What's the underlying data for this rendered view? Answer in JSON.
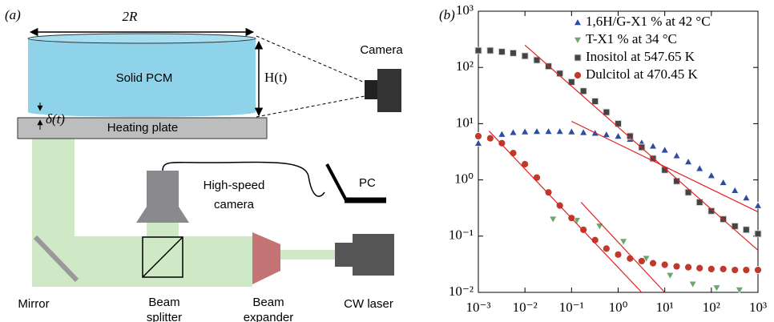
{
  "diagram": {
    "panel_label": "(a)",
    "labels": {
      "width": "2R",
      "solid": "Solid PCM",
      "height": "H(t)",
      "camera": "Camera",
      "gap": "δ(t)",
      "plate": "Heating plate",
      "hs_camera": [
        "High-speed",
        "camera"
      ],
      "pc": "PC",
      "mirror": "Mirror",
      "splitter": [
        "Beam",
        "splitter"
      ],
      "expander": [
        "Beam",
        "expander"
      ],
      "laser": "CW laser"
    }
  },
  "chart_data": {
    "type": "scatter",
    "panel_label": "(b)",
    "xscale": "log",
    "yscale": "log",
    "xlim": [
      0.001,
      1000
    ],
    "ylim": [
      0.01,
      1000
    ],
    "xticks": [
      {
        "value": 0.001,
        "label": "10⁻³"
      },
      {
        "value": 0.01,
        "label": "10⁻²"
      },
      {
        "value": 0.1,
        "label": "10⁻¹"
      },
      {
        "value": 1,
        "label": "10⁰"
      },
      {
        "value": 10,
        "label": "10¹"
      },
      {
        "value": 100,
        "label": "10²"
      },
      {
        "value": 1000,
        "label": "10³"
      }
    ],
    "yticks": [
      {
        "value": 0.01,
        "label": "10⁻²"
      },
      {
        "value": 0.1,
        "label": "10⁻¹"
      },
      {
        "value": 1,
        "label": "10⁰"
      },
      {
        "value": 10,
        "label": "10¹"
      },
      {
        "value": 100,
        "label": "10²"
      },
      {
        "value": 1000,
        "label": "10³"
      }
    ],
    "legend": "upper right",
    "series": [
      {
        "name": "1,6H/G-X1 % at 42 °C",
        "color": "#2b4f9e",
        "marker": "triangle-up",
        "x": [
          0.001,
          0.0018,
          0.0032,
          0.0056,
          0.01,
          0.018,
          0.032,
          0.056,
          0.1,
          0.18,
          0.32,
          0.56,
          1,
          1.8,
          3.2,
          5.6,
          10,
          18,
          32,
          56,
          100,
          180,
          320,
          560,
          1000
        ],
        "values": [
          4.5,
          5.5,
          6.5,
          7,
          7.2,
          7.3,
          7.3,
          7.3,
          7.2,
          7,
          6.8,
          6.4,
          6,
          5.3,
          4.6,
          4,
          3.4,
          2.7,
          2.1,
          1.6,
          1.2,
          0.9,
          0.65,
          0.48,
          0.35
        ]
      },
      {
        "name": "T-X1 % at 34 °C",
        "color": "#6aa870",
        "marker": "triangle-down",
        "x": [
          0.04,
          0.13,
          0.4,
          1.3,
          4,
          13,
          40,
          130,
          400
        ],
        "values": [
          0.2,
          0.19,
          0.15,
          0.08,
          0.04,
          0.02,
          0.014,
          0.012,
          0.011
        ]
      },
      {
        "name": "Inositol at 547.65 K",
        "color": "#444444",
        "marker": "square",
        "x": [
          0.001,
          0.0018,
          0.0032,
          0.0056,
          0.01,
          0.018,
          0.032,
          0.056,
          0.1,
          0.18,
          0.32,
          0.56,
          1,
          1.8,
          3.2,
          5.6,
          10,
          18,
          32,
          56,
          100,
          180,
          320,
          560,
          1000
        ],
        "values": [
          200,
          200,
          190,
          180,
          160,
          135,
          105,
          78,
          55,
          38,
          25,
          16,
          10,
          6,
          3.8,
          2.4,
          1.5,
          0.95,
          0.6,
          0.4,
          0.28,
          0.2,
          0.15,
          0.13,
          0.11
        ]
      },
      {
        "name": "Dulcitol at 470.45 K",
        "color": "#c0392b",
        "marker": "circle",
        "x": [
          0.001,
          0.0018,
          0.0032,
          0.0056,
          0.01,
          0.018,
          0.032,
          0.056,
          0.1,
          0.18,
          0.32,
          0.56,
          1,
          1.8,
          3.2,
          5.6,
          10,
          18,
          32,
          56,
          100,
          180,
          320,
          560,
          1000
        ],
        "values": [
          6,
          5.5,
          4.5,
          3,
          1.9,
          1.1,
          0.6,
          0.35,
          0.21,
          0.13,
          0.085,
          0.06,
          0.047,
          0.04,
          0.036,
          0.033,
          0.031,
          0.029,
          0.028,
          0.027,
          0.026,
          0.026,
          0.025,
          0.025,
          0.025
        ]
      },
      {
        "color": "#e02020",
        "marker": "line",
        "x": [
          0.01,
          1000
        ],
        "values": [
          250,
          0.056
        ]
      },
      {
        "color": "#e02020",
        "marker": "line",
        "x": [
          0.1,
          1000
        ],
        "values": [
          11,
          0.27
        ]
      },
      {
        "color": "#e02020",
        "marker": "line",
        "x": [
          0.0017,
          3.2
        ],
        "values": [
          7.4,
          0.01
        ]
      },
      {
        "color": "#e02020",
        "marker": "line",
        "x": [
          0.16,
          10
        ],
        "values": [
          0.4,
          0.01
        ]
      }
    ]
  }
}
